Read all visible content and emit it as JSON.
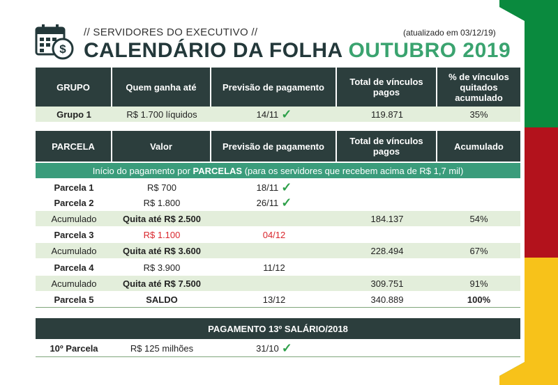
{
  "header": {
    "kicker": "// SERVIDORES DO EXECUTIVO //",
    "updated": "(atualizado em 03/12/19)",
    "title_main": "CALENDÁRIO DA FOLHA",
    "title_month": "OUTUBRO 2019",
    "icon": "calendar-money-icon"
  },
  "colors": {
    "dark": "#2c3e3d",
    "teal": "#3a9c7b",
    "shade": "#e3eedb",
    "green": "#0a8a3e",
    "red": "#b3121c",
    "yellow": "#f7c21a",
    "accent": "#3aa36f"
  },
  "table1": {
    "headers": [
      "GRUPO",
      "Quem ganha até",
      "Previsão de pagamento",
      "Total de vínculos pagos",
      "% de vínculos quitados acumulado"
    ],
    "rows": [
      {
        "a": "Grupo 1",
        "b": "R$ 1.700 líquidos",
        "c": "14/11",
        "d": "119.871",
        "e": "35%"
      }
    ]
  },
  "table2": {
    "headers": [
      "PARCELA",
      "Valor",
      "Previsão de pagamento",
      "Total de vínculos pagos",
      "Acumulado"
    ],
    "banner_pre": "Início do pagamento ",
    "banner_mid1": "por ",
    "banner_bold": "PARCELAS",
    "banner_post": " (para os servidores que recebem acima de R$ 1,7 mil)",
    "rows": [
      {
        "a": "Parcela 1",
        "b": "R$ 700",
        "c": "18/11",
        "d": "",
        "e": ""
      },
      {
        "a": "Parcela 2",
        "b": "R$ 1.800",
        "c": "26/11",
        "d": "",
        "e": ""
      },
      {
        "a": "Acumulado",
        "b": "Quita até R$ 2.500",
        "c": "",
        "d": "184.137",
        "e": "54%"
      },
      {
        "a": "Parcela 3",
        "b": "R$ 1.100",
        "c": "04/12",
        "d": "",
        "e": ""
      },
      {
        "a": "Acumulado",
        "b": "Quita até R$ 3.600",
        "c": "",
        "d": "228.494",
        "e": "67%"
      },
      {
        "a": "Parcela 4",
        "b": "R$ 3.900",
        "c": "11/12",
        "d": "",
        "e": ""
      },
      {
        "a": "Acumulado",
        "b": "Quita até R$ 7.500",
        "c": "",
        "d": "309.751",
        "e": "91%"
      },
      {
        "a": "Parcela 5",
        "b": "SALDO",
        "c": "13/12",
        "d": "340.889",
        "e": "100%"
      }
    ]
  },
  "table3": {
    "header": "PAGAMENTO 13º SALÁRIO/2018",
    "rows": [
      {
        "a": "10º Parcela",
        "b": "R$ 125 milhões",
        "c": "31/10"
      }
    ]
  },
  "check_glyph": "✓"
}
